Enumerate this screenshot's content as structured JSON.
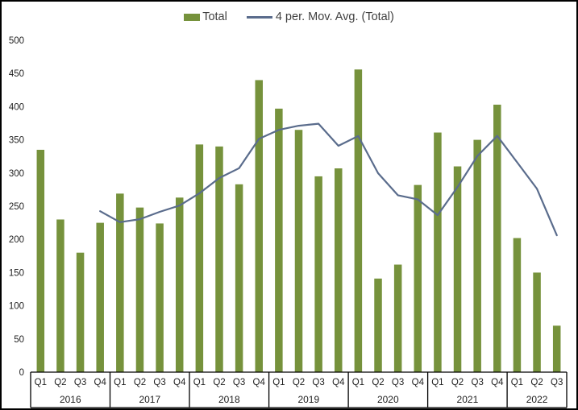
{
  "chart_data": {
    "type": "bar",
    "title": "",
    "legend_position": "top",
    "background": "#FFFFFF",
    "border_color": "#000000",
    "axis_text_color": "#1f1f1f",
    "axis_line_color": "#000000",
    "grid": false,
    "ylim": [
      0,
      500
    ],
    "ytick_step": 50,
    "y_ticks": [
      0,
      50,
      100,
      150,
      200,
      250,
      300,
      350,
      400,
      450,
      500
    ],
    "groups": [
      {
        "year": "2016",
        "quarters": [
          "Q1",
          "Q2",
          "Q3",
          "Q4"
        ]
      },
      {
        "year": "2017",
        "quarters": [
          "Q1",
          "Q2",
          "Q3",
          "Q4"
        ]
      },
      {
        "year": "2018",
        "quarters": [
          "Q1",
          "Q2",
          "Q3",
          "Q4"
        ]
      },
      {
        "year": "2019",
        "quarters": [
          "Q1",
          "Q2",
          "Q3",
          "Q4"
        ]
      },
      {
        "year": "2020",
        "quarters": [
          "Q1",
          "Q2",
          "Q3",
          "Q4"
        ]
      },
      {
        "year": "2021",
        "quarters": [
          "Q1",
          "Q2",
          "Q3",
          "Q4"
        ]
      },
      {
        "year": "2022",
        "quarters": [
          "Q1",
          "Q2",
          "Q3"
        ]
      }
    ],
    "series": [
      {
        "name": "Total",
        "type": "bar",
        "color": "#76923C",
        "values": [
          335,
          230,
          180,
          225,
          269,
          248,
          224,
          263,
          343,
          340,
          283,
          440,
          397,
          365,
          295,
          307,
          456,
          141,
          162,
          282,
          361,
          310,
          350,
          403,
          202,
          150,
          70
        ]
      },
      {
        "name": "4 per. Mov. Avg. (Total)",
        "type": "line",
        "color": "#5A6C8C",
        "values": [
          null,
          null,
          null,
          242.5,
          226,
          230.5,
          241.5,
          251,
          269.5,
          292.5,
          307.25,
          351.5,
          365,
          371.25,
          374.25,
          341,
          355.75,
          299.75,
          266.5,
          260.25,
          236.5,
          278.75,
          325.75,
          356,
          316.25,
          276.25,
          206.25
        ]
      }
    ]
  }
}
